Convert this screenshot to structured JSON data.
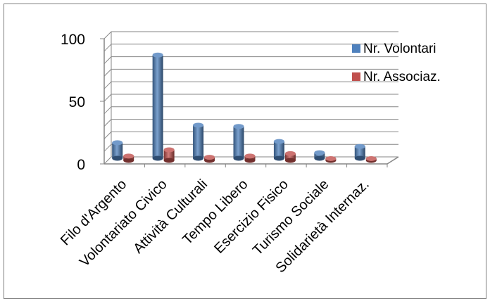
{
  "chart_data": {
    "type": "bar",
    "style": "3d-cylinder",
    "categories": [
      "Filo d'Argento",
      "Volontariato Civico",
      "Attività Culturali",
      "Tempo Libero",
      "Esercizio Fisico",
      "Turismo Sociale",
      "Solidarietà Internaz."
    ],
    "series": [
      {
        "name": "Nr. Volontari",
        "color": "#4F81BD",
        "values": [
          13,
          83,
          27,
          26,
          14,
          5,
          10
        ]
      },
      {
        "name": "Nr. Associaz.",
        "color": "#C0504D",
        "values": [
          4,
          9,
          3,
          4,
          6,
          2,
          2
        ]
      }
    ],
    "ylim": [
      0,
      100
    ],
    "yticks": [
      0,
      50,
      100
    ],
    "grid": true,
    "legend": "right"
  }
}
